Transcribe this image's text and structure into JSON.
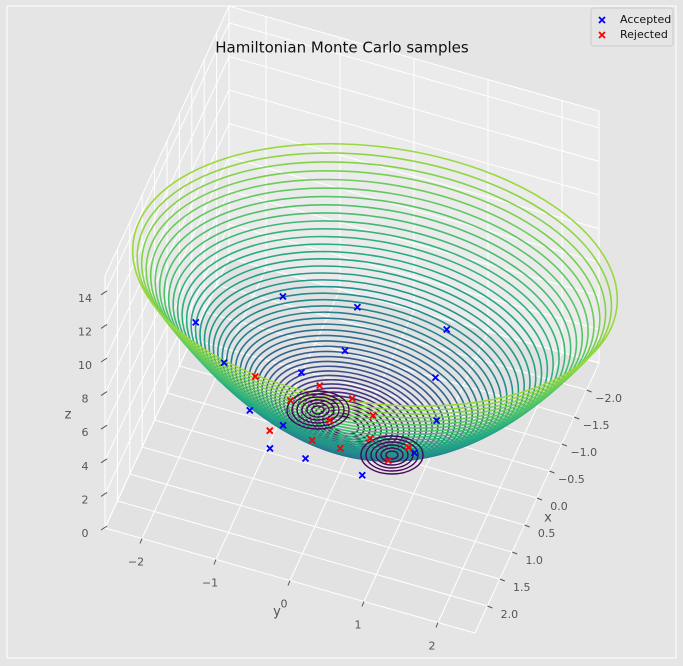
{
  "chart_data": {
    "type": "scatter3d",
    "title": "Hamiltonian Monte Carlo samples",
    "xlabel": "x",
    "ylabel": "y",
    "zlabel": "z",
    "xlim": [
      -2.5,
      2.5
    ],
    "ylim": [
      -2.5,
      2.5
    ],
    "zlim": [
      0,
      15
    ],
    "xticks": [
      {
        "value": -2,
        "label": "−2.0"
      },
      {
        "value": -1.5,
        "label": "−1.5"
      },
      {
        "value": -1,
        "label": "−1.0"
      },
      {
        "value": -0.5,
        "label": "−0.5"
      },
      {
        "value": 0,
        "label": "0.0"
      },
      {
        "value": 0.5,
        "label": "0.5"
      },
      {
        "value": 1,
        "label": "1.0"
      },
      {
        "value": 1.5,
        "label": "1.5"
      },
      {
        "value": 2,
        "label": "2.0"
      }
    ],
    "yticks": [
      {
        "value": -2,
        "label": "−2"
      },
      {
        "value": -1,
        "label": "−1"
      },
      0,
      1,
      2
    ],
    "zticks": [
      0,
      2,
      4,
      6,
      8,
      10,
      12,
      14
    ],
    "grid": true,
    "legend": "upper right",
    "series": [
      {
        "name": "Accepted",
        "color": "#0000ff",
        "x": [
          -0.74,
          -1.57,
          -1.74,
          -1.79,
          -0.95,
          -0.21,
          0.45,
          0.98,
          0.98,
          0.99,
          0.38,
          -0.25,
          -0.97,
          -0.41,
          0.54
        ],
        "y": [
          -2.36,
          -1.46,
          -0.51,
          0.68,
          0.81,
          -1.8,
          -1.23,
          -0.78,
          -0.3,
          0.47,
          0.97,
          1.06,
          -0.42,
          -0.82,
          -0.75
        ],
        "z": [
          2,
          2,
          2,
          2,
          2,
          2,
          2,
          2,
          2,
          2,
          2,
          2,
          2,
          2,
          2
        ]
      },
      {
        "name": "Rejected",
        "color": "#ff0000",
        "x": [
          -0.13,
          -0.28,
          -0.22,
          -0.04,
          0.65,
          0.65,
          0.63,
          0.32,
          0.1,
          0.69,
          0.24,
          0.35
        ],
        "y": [
          -1.35,
          -0.53,
          -0.07,
          0.27,
          -0.32,
          0.06,
          0.7,
          0.87,
          -0.8,
          -0.88,
          -0.22,
          0.36
        ],
        "z": [
          2,
          2,
          2,
          2,
          2,
          2,
          2,
          2,
          2,
          2,
          2,
          2
        ]
      }
    ]
  }
}
